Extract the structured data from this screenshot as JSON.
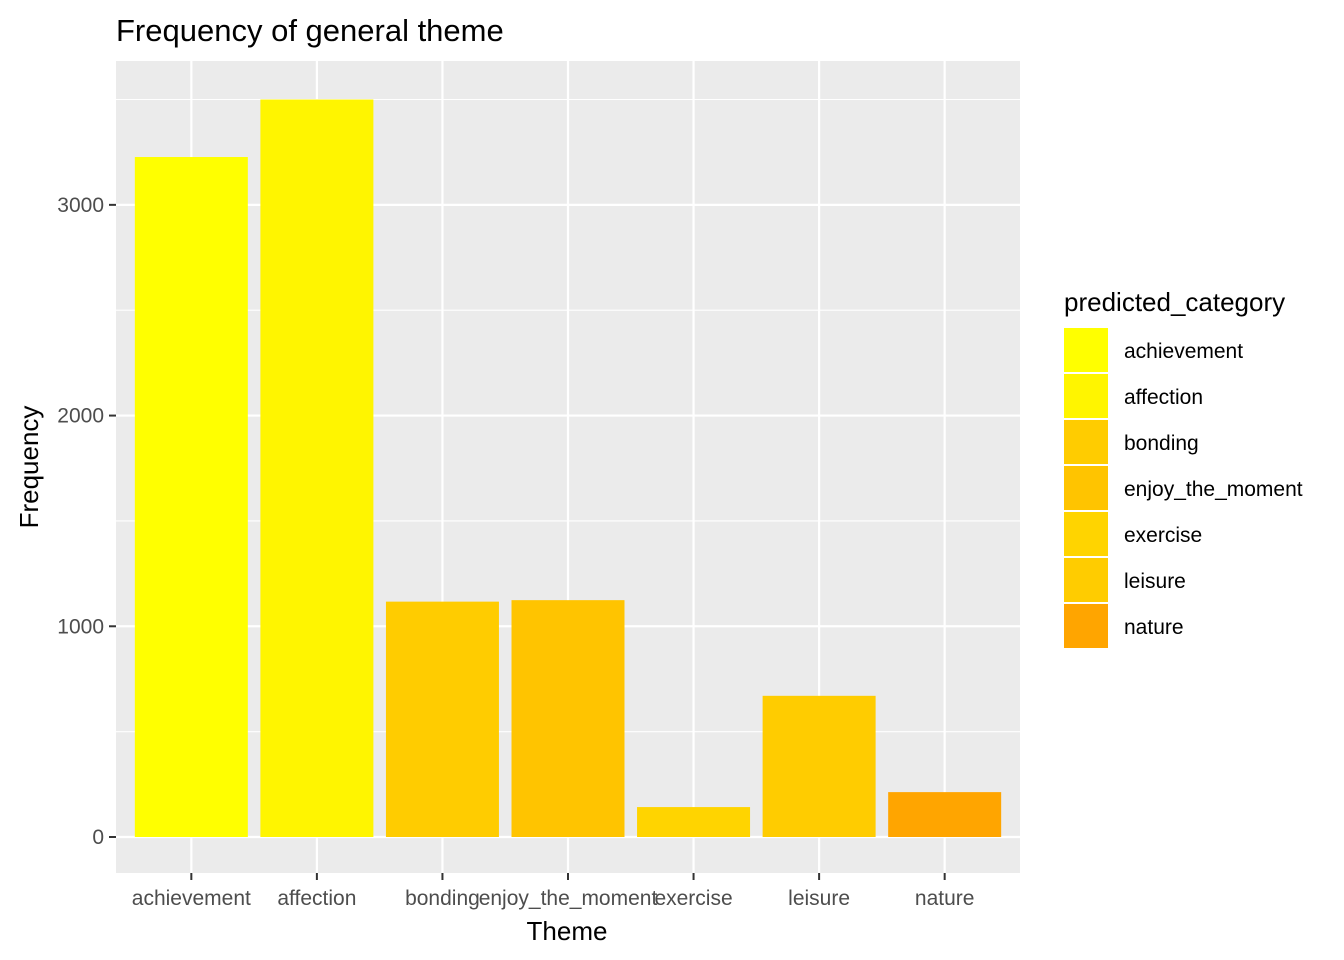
{
  "chart_data": {
    "type": "bar",
    "title": "Frequency of general theme",
    "xlabel": "Theme",
    "ylabel": "Frequency",
    "categories": [
      "achievement",
      "affection",
      "bonding",
      "enjoy_the_moment",
      "exercise",
      "leisure",
      "nature"
    ],
    "values": [
      3227,
      3500,
      1117,
      1124,
      142,
      670,
      213
    ],
    "colors": [
      "#FFFF00",
      "#FFF500",
      "#FFCC00",
      "#FFC400",
      "#FFD400",
      "#FFCC00",
      "#FFA500"
    ],
    "ylim": [
      0,
      3500
    ],
    "yticks": [
      0,
      1000,
      2000,
      3000
    ],
    "ytick_labels": [
      "0",
      "1000",
      "2000",
      "3000"
    ],
    "grid": true,
    "panel_background": "#EBEBEB",
    "legend": {
      "title": "predicted_category",
      "placement": "right",
      "entries": [
        "achievement",
        "affection",
        "bonding",
        "enjoy_the_moment",
        "exercise",
        "leisure",
        "nature"
      ],
      "colors": [
        "#FFFF00",
        "#FFF500",
        "#FFCC00",
        "#FFC400",
        "#FFD400",
        "#FFCC00",
        "#FFA500"
      ]
    }
  }
}
